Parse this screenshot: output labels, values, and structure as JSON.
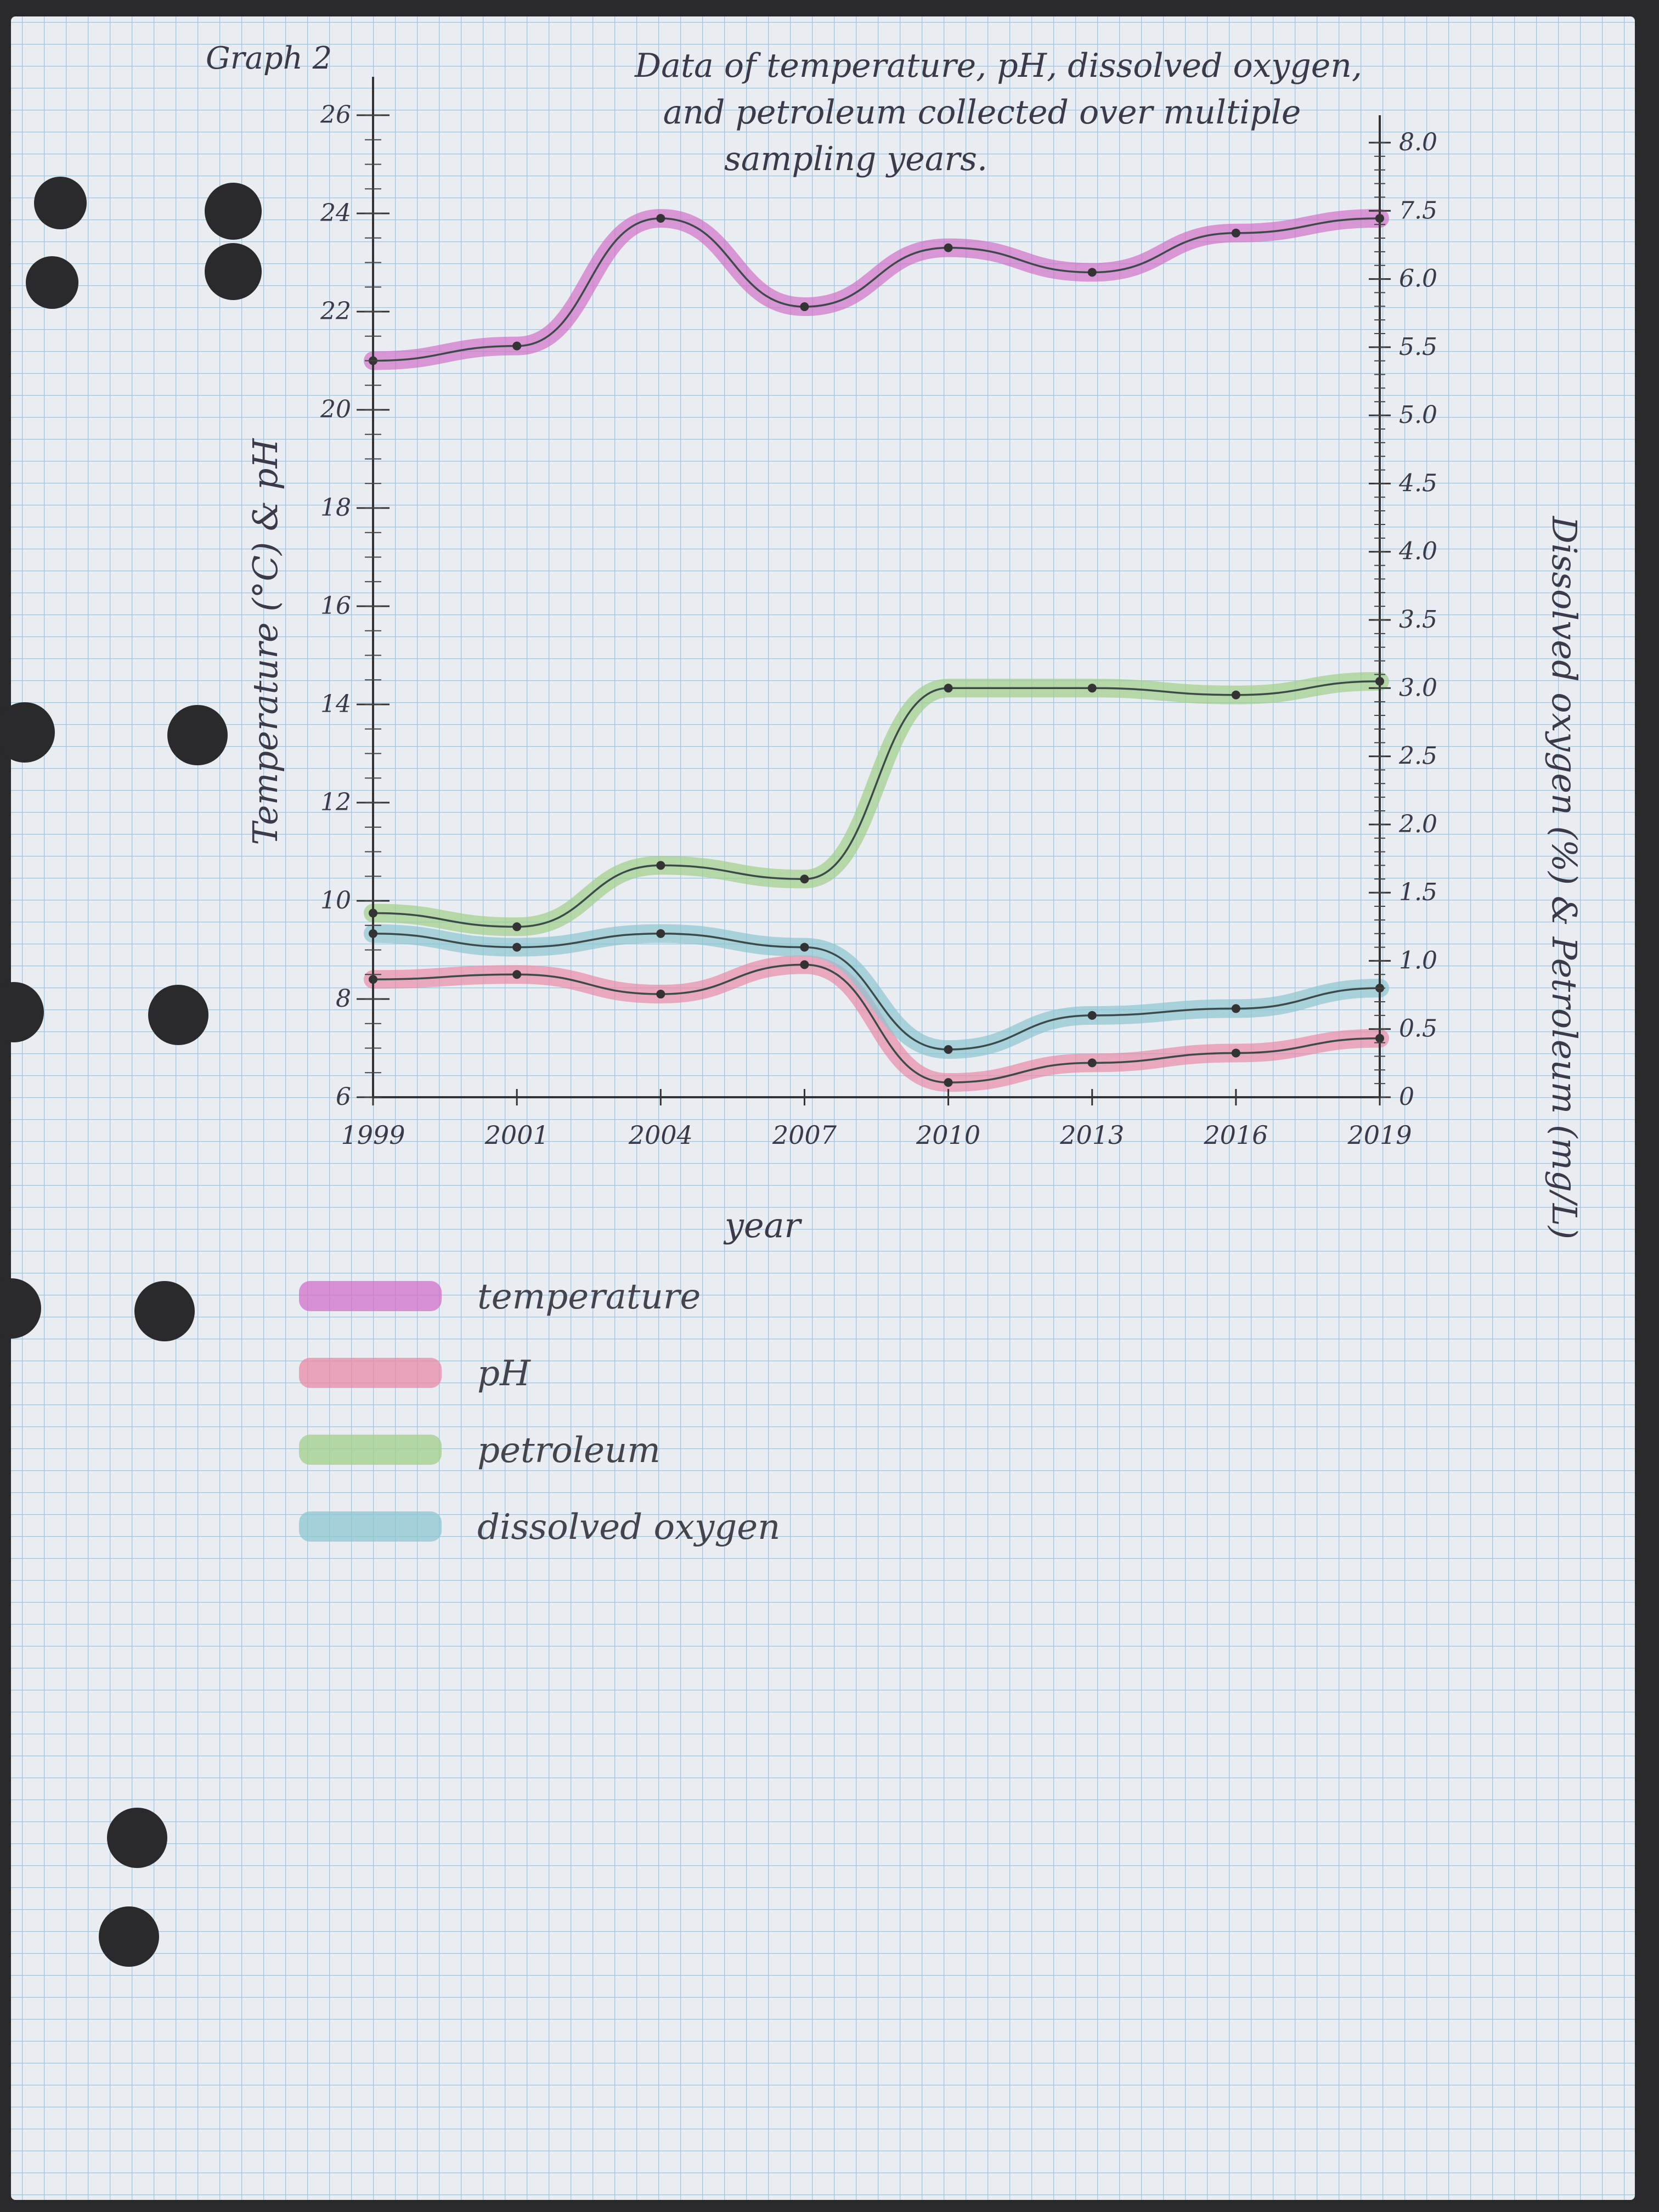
{
  "graph_label": "Graph 2",
  "chart_data": {
    "type": "line",
    "title_lines": [
      "Data of temperature, pH, dissolved oxygen,",
      "and petroleum collected over multiple",
      "sampling years."
    ],
    "xlabel": "year",
    "ylabel_left": "Temperature (°C) & pH",
    "ylabel_right": "Dissolved oxygen (%) & Petroleum (mg/L)",
    "categories": [
      "1999",
      "2001",
      "2004",
      "2007",
      "2010",
      "2013",
      "2016",
      "2019"
    ],
    "left_axis": {
      "range": [
        6,
        26
      ],
      "ticks": [
        "6",
        "8",
        "10",
        "12",
        "14",
        "16",
        "18",
        "20",
        "22",
        "24",
        "26"
      ]
    },
    "right_axis": {
      "range": [
        0,
        8.0
      ],
      "ticks": [
        "0",
        "0.5",
        "1.0",
        "1.5",
        "2.0",
        "2.5",
        "3.0",
        "3.5",
        "4.0",
        "4.5",
        "5.0",
        "5.5",
        "6.0",
        "7.5",
        "8.0"
      ]
    },
    "series": [
      {
        "name": "temperature",
        "axis": "left",
        "color": "#d070c8",
        "values": [
          21.0,
          21.3,
          23.9,
          22.1,
          23.3,
          22.8,
          23.6,
          23.9
        ]
      },
      {
        "name": "pH",
        "axis": "left",
        "color": "#e88aa8",
        "values": [
          8.4,
          8.5,
          8.1,
          8.7,
          6.3,
          6.7,
          6.9,
          7.2
        ]
      },
      {
        "name": "petroleum",
        "axis": "right",
        "color": "#9fcf8a",
        "values": [
          1.35,
          1.25,
          1.7,
          1.6,
          3.0,
          3.0,
          2.95,
          3.05
        ]
      },
      {
        "name": "dissolved oxygen",
        "axis": "right",
        "color": "#8cc5d0",
        "values": [
          1.2,
          1.1,
          1.2,
          1.1,
          0.35,
          0.6,
          0.65,
          0.8
        ]
      }
    ],
    "legend_position": "bottom-left",
    "grid": true
  }
}
